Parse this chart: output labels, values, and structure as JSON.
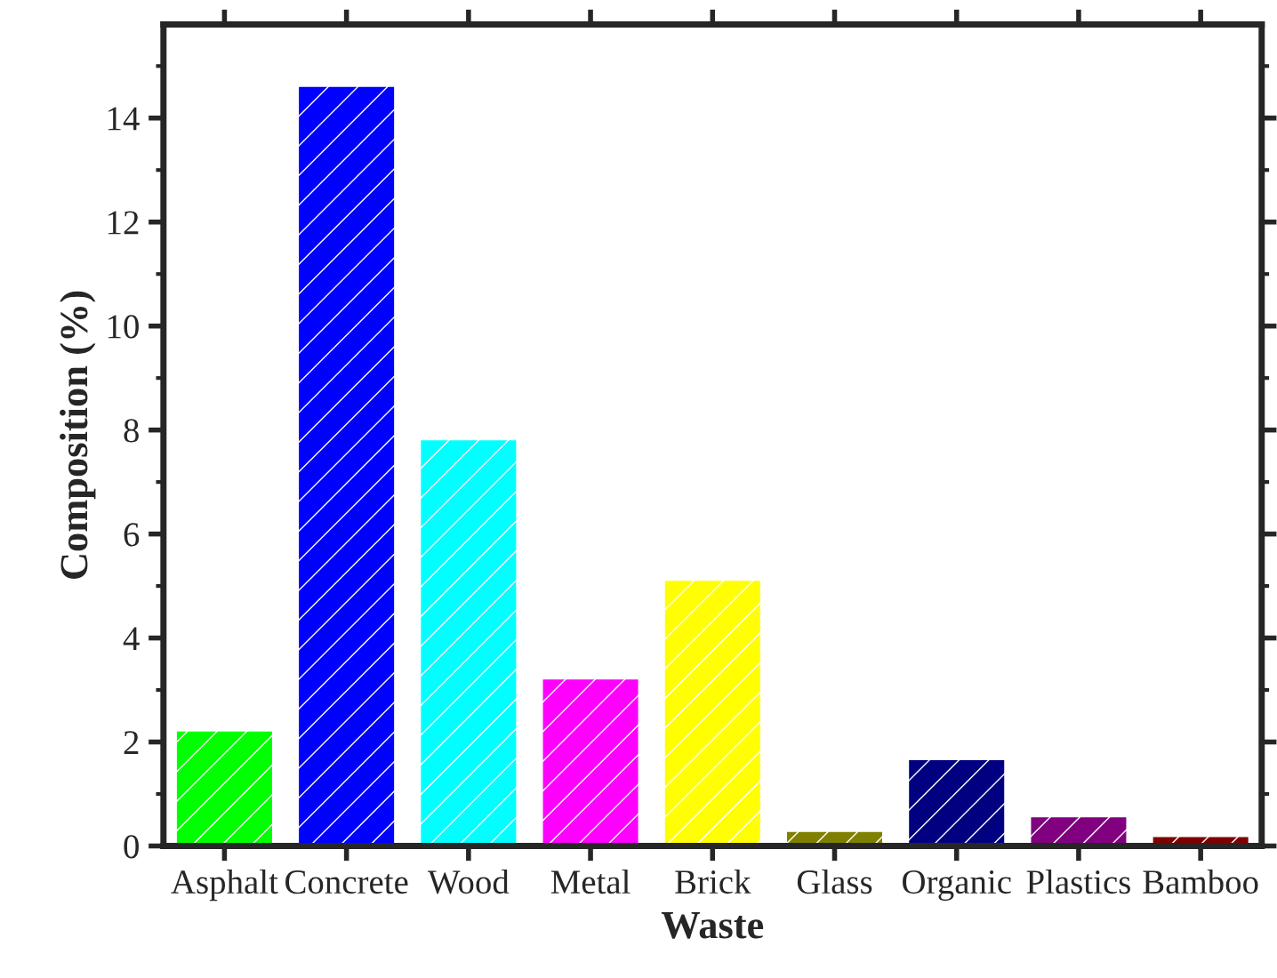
{
  "chart_data": {
    "type": "bar",
    "xlabel": "Waste",
    "ylabel": "Composition (%)",
    "categories": [
      "Asphalt",
      "Concrete",
      "Wood",
      "Metal",
      "Brick",
      "Glass",
      "Organic",
      "Plastics",
      "Bamboo"
    ],
    "values": [
      2.2,
      14.6,
      7.8,
      3.2,
      5.1,
      0.27,
      1.65,
      0.55,
      0.17
    ],
    "colors": [
      "#00ff00",
      "#0000ff",
      "#00ffff",
      "#ff00ff",
      "#ffff00",
      "#808000",
      "#000080",
      "#800080",
      "#800000"
    ],
    "ylim": [
      0,
      15.8
    ],
    "yticks": [
      0,
      2,
      4,
      6,
      8,
      10,
      12,
      14
    ],
    "grid": false,
    "legend": false
  }
}
